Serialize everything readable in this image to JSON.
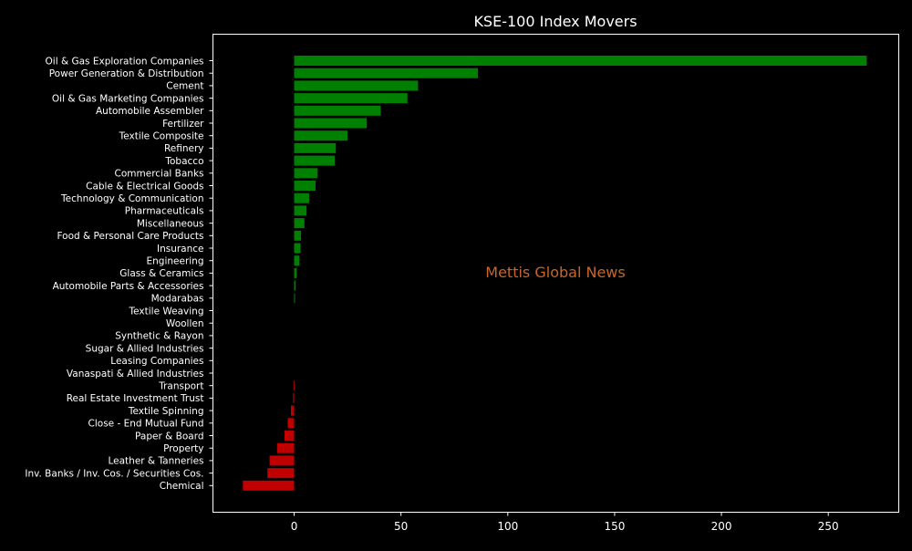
{
  "chart_data": {
    "type": "bar",
    "orientation": "horizontal",
    "title": "KSE-100 Index Movers",
    "xlabel": "",
    "ylabel": "",
    "xlim": [
      -38,
      283
    ],
    "xticks": [
      0,
      50,
      100,
      150,
      200,
      250
    ],
    "grid": false,
    "legend": "none",
    "watermark": "Mettis Global News",
    "categories": [
      "Oil & Gas Exploration Companies",
      "Power Generation & Distribution",
      "Cement",
      "Oil & Gas Marketing Companies",
      "Automobile Assembler",
      "Fertilizer",
      "Textile Composite",
      "Refinery",
      "Tobacco",
      "Commercial Banks",
      "Cable & Electrical Goods",
      "Technology & Communication",
      "Pharmaceuticals",
      "Miscellaneous",
      "Food & Personal Care Products",
      "Insurance",
      "Engineering",
      "Glass & Ceramics",
      "Automobile Parts & Accessories",
      "Modarabas",
      "Textile Weaving",
      "Woollen",
      "Synthetic & Rayon",
      "Sugar & Allied Industries",
      "Leasing Companies",
      "Vanaspati & Allied Industries",
      "Transport",
      "Real Estate Investment Trust",
      "Textile Spinning",
      "Close - End Mutual Fund",
      "Paper & Board",
      "Property",
      "Leather & Tanneries",
      "Inv. Banks / Inv. Cos. / Securities Cos.",
      "Chemical"
    ],
    "values": [
      268,
      86,
      58,
      53,
      40.5,
      34,
      25,
      19.5,
      19,
      11,
      10,
      7,
      5.8,
      4.8,
      3.2,
      3.0,
      2.5,
      1.2,
      0.7,
      0.3,
      0,
      0,
      0,
      0,
      0,
      0,
      -0.3,
      -0.5,
      -1.5,
      -3,
      -4.5,
      -8,
      -11.5,
      -12.5,
      -24
    ],
    "colors": {
      "positive": "#008000",
      "negative": "#c00000",
      "text": "#ffffff",
      "watermark": "#c8662a",
      "background": "#000000"
    }
  }
}
